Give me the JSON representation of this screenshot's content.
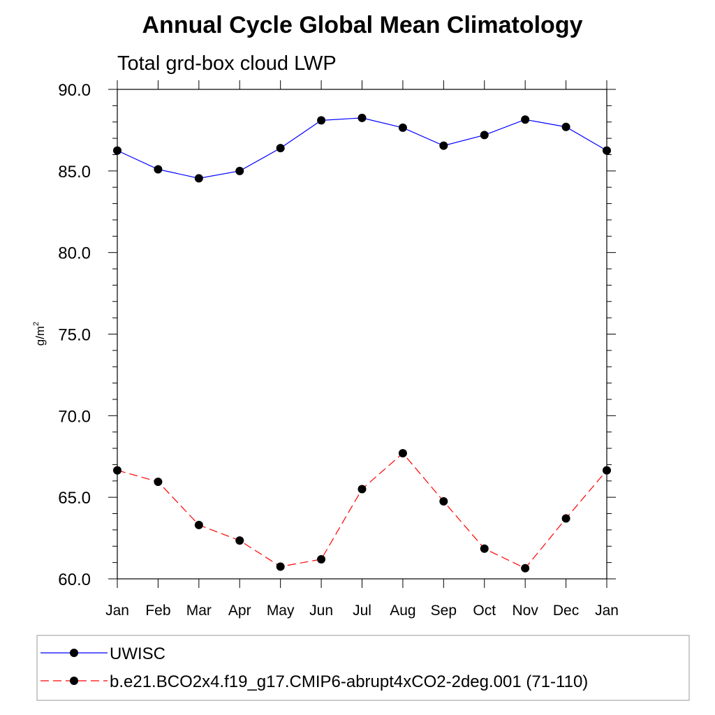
{
  "chart_data": {
    "type": "line",
    "title": "Annual Cycle Global Mean Climatology",
    "subtitle": "Total grd-box cloud LWP",
    "xlabel": "",
    "ylabel_base": "g/m",
    "ylabel_exp": "2",
    "ylim": [
      60.0,
      90.0
    ],
    "yticks": [
      "60.0",
      "65.0",
      "70.0",
      "75.0",
      "80.0",
      "85.0",
      "90.0"
    ],
    "ytick_values": [
      60,
      65,
      70,
      75,
      80,
      85,
      90
    ],
    "categories": [
      "Jan",
      "Feb",
      "Mar",
      "Apr",
      "May",
      "Jun",
      "Jul",
      "Aug",
      "Sep",
      "Oct",
      "Nov",
      "Dec",
      "Jan"
    ],
    "grid": false,
    "legend_position": "bottom",
    "series": [
      {
        "name": "UWISC",
        "color": "#0000ff",
        "dashed": false,
        "values": [
          86.25,
          85.1,
          84.55,
          85.0,
          86.4,
          88.1,
          88.25,
          87.65,
          86.55,
          87.2,
          88.15,
          87.7,
          86.25
        ]
      },
      {
        "name": "b.e21.BCO2x4.f19_g17.CMIP6-abrupt4xCO2-2deg.001 (71-110)",
        "color": "#ff0000",
        "dashed": true,
        "values": [
          66.65,
          65.95,
          63.3,
          62.35,
          60.75,
          61.2,
          65.5,
          67.7,
          64.75,
          61.85,
          60.65,
          63.7,
          66.65
        ]
      }
    ]
  }
}
